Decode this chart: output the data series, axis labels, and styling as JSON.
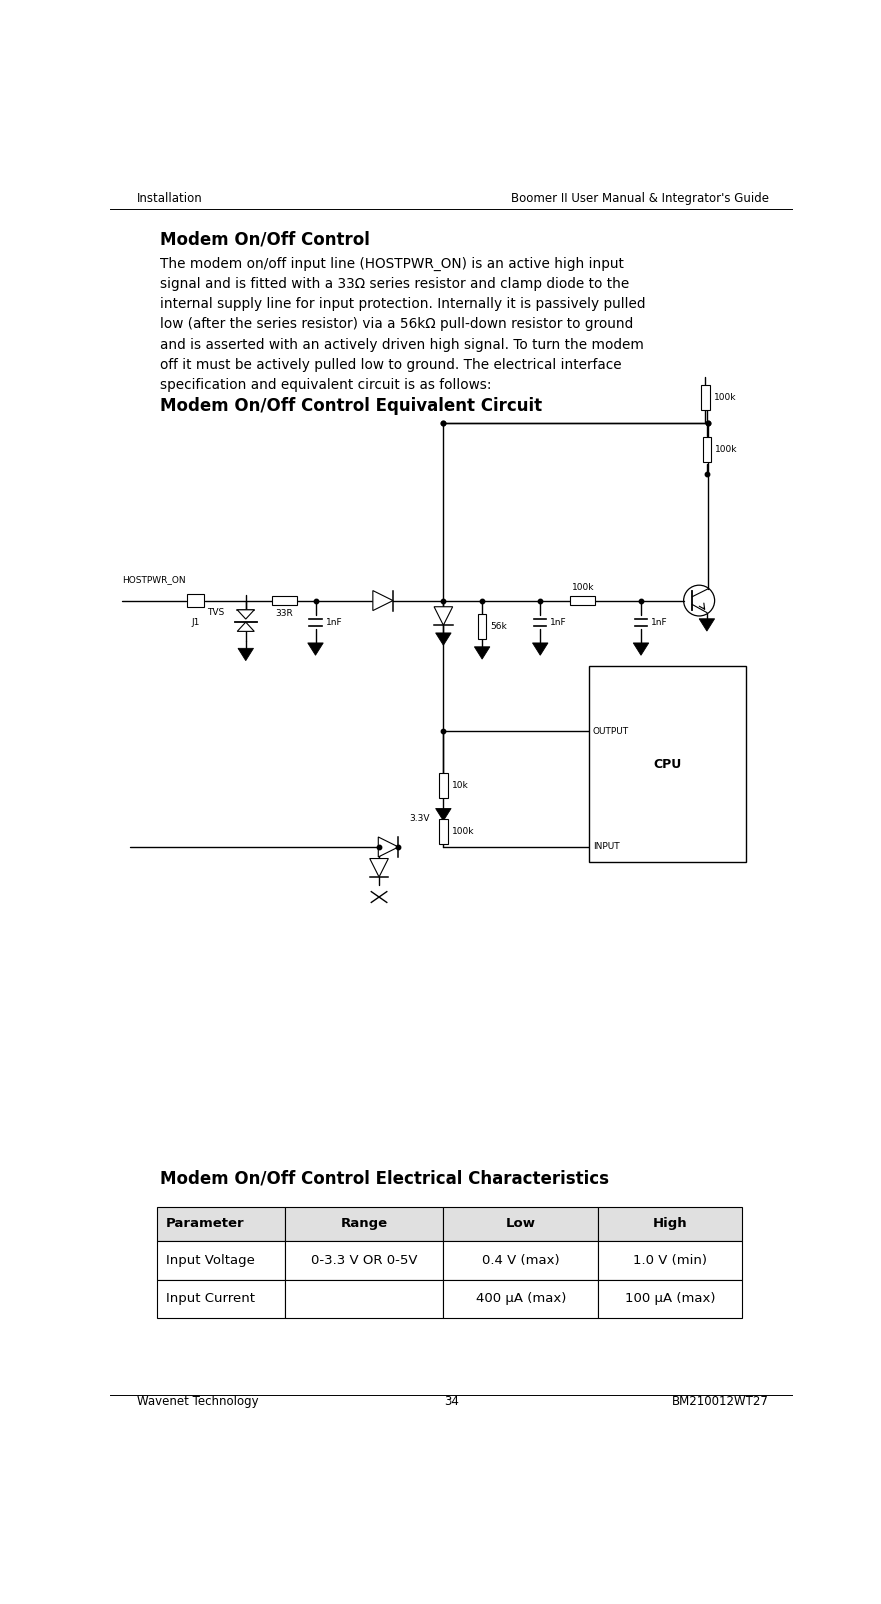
{
  "header_left": "Installation",
  "header_right": "Boomer II User Manual & Integrator's Guide",
  "footer_left": "Wavenet Technology",
  "footer_center": "34",
  "footer_right": "BM210012WT27",
  "title1": "Modem On/Off Control",
  "body_text": "The modem on/off input line (HOSTPWR_ON) is an active high input\nsignal and is fitted with a 33Ω series resistor and clamp diode to the\ninternal supply line for input protection. Internally it is passively pulled\nlow (after the series resistor) via a 56kΩ pull-down resistor to ground\nand is asserted with an actively driven high signal. To turn the modem\noff it must be actively pulled low to ground. The electrical interface\nspecification and equivalent circuit is as follows:",
  "title2": "Modem On/Off Control Equivalent Circuit",
  "title3": "Modem On/Off Control Electrical Characteristics",
  "table_headers": [
    "Parameter",
    "Range",
    "Low",
    "High"
  ],
  "table_rows": [
    [
      "Input Voltage",
      "0-3.3 V OR 0-5V",
      "0.4 V (max)",
      "1.0 V (min)"
    ],
    [
      "Input Current",
      "",
      "400 μA (max)",
      "100 μA (max)"
    ]
  ],
  "bg_color": "#ffffff",
  "text_color": "#000000"
}
